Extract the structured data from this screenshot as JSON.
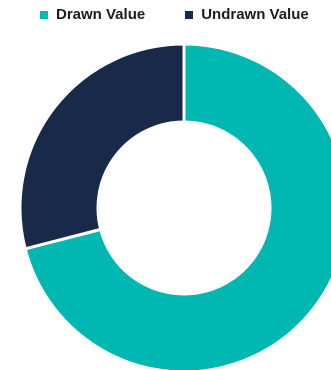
{
  "chart_data": {
    "type": "pie",
    "variant": "donut",
    "title": "",
    "legend_position": "top",
    "series": [
      {
        "name": "Drawn Value",
        "value": 71,
        "color": "#00b7b2"
      },
      {
        "name": "Undrawn Value",
        "value": 29,
        "color": "#18294a"
      }
    ]
  }
}
